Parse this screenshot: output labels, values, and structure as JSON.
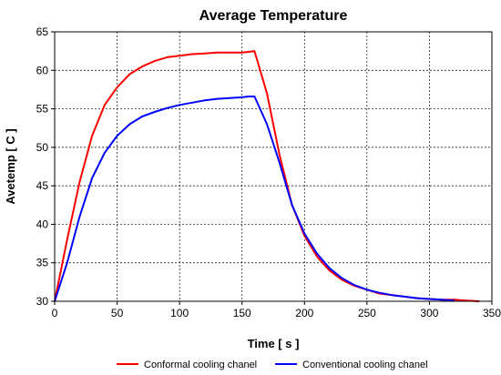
{
  "chart_data": {
    "type": "line",
    "title": "Average Temperature",
    "xlabel": "Time [ s ]",
    "ylabel": "Avetemp [ C ]",
    "xlim": [
      0,
      350
    ],
    "ylim": [
      30,
      65
    ],
    "xticks": [
      0,
      50,
      100,
      150,
      200,
      250,
      300,
      350
    ],
    "yticks": [
      30,
      35,
      40,
      45,
      50,
      55,
      60,
      65
    ],
    "grid": true,
    "legend_position": "bottom",
    "series": [
      {
        "name": "Conformal cooling chanel",
        "color": "#ff0000",
        "x": [
          0,
          10,
          20,
          30,
          40,
          50,
          60,
          70,
          80,
          90,
          100,
          110,
          120,
          130,
          140,
          150,
          155,
          160,
          170,
          180,
          190,
          200,
          210,
          220,
          230,
          240,
          250,
          260,
          270,
          280,
          290,
          300,
          310,
          320,
          330,
          340
        ],
        "y": [
          30,
          38,
          45.5,
          51.5,
          55.5,
          57.8,
          59.5,
          60.5,
          61.2,
          61.7,
          61.9,
          62.1,
          62.2,
          62.3,
          62.3,
          62.3,
          62.4,
          62.5,
          57,
          49,
          42.5,
          38.5,
          35.8,
          34,
          32.8,
          32,
          31.5,
          31,
          30.8,
          30.6,
          30.4,
          30.3,
          30.2,
          30.2,
          30.1,
          30
        ]
      },
      {
        "name": "Conventional cooling chanel",
        "color": "#0000ff",
        "x": [
          0,
          10,
          20,
          30,
          40,
          50,
          60,
          70,
          80,
          90,
          100,
          110,
          120,
          130,
          140,
          150,
          155,
          160,
          170,
          180,
          190,
          200,
          210,
          220,
          230,
          240,
          250,
          260,
          270,
          280,
          290,
          300,
          310,
          320
        ],
        "y": [
          30,
          35,
          41,
          46,
          49.3,
          51.5,
          53,
          54,
          54.6,
          55.1,
          55.5,
          55.8,
          56.1,
          56.3,
          56.4,
          56.5,
          56.6,
          56.6,
          53,
          48,
          42.5,
          38.8,
          36.2,
          34.3,
          33,
          32.1,
          31.5,
          31.1,
          30.8,
          30.6,
          30.4,
          30.3,
          30.2,
          30.1
        ]
      }
    ]
  }
}
